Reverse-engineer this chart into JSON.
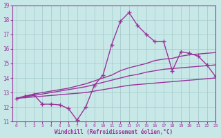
{
  "background_color": "#c8e8e8",
  "grid_color": "#a0c8c8",
  "line_color": "#993399",
  "title": "Windchill (Refroidissement éolien,°C)",
  "xlim": [
    -0.5,
    23
  ],
  "ylim": [
    11,
    19
  ],
  "yticks": [
    11,
    12,
    13,
    14,
    15,
    16,
    17,
    18,
    19
  ],
  "xticks": [
    0,
    1,
    2,
    3,
    4,
    5,
    6,
    7,
    8,
    9,
    10,
    11,
    12,
    13,
    14,
    15,
    16,
    17,
    18,
    19,
    20,
    21,
    22,
    23
  ],
  "series": [
    {
      "x": [
        0,
        1,
        2,
        3,
        4,
        5,
        6,
        7,
        8,
        9,
        10,
        11,
        12,
        13,
        14,
        15,
        16,
        17,
        18,
        19,
        20,
        21,
        22,
        23
      ],
      "y": [
        12.6,
        12.65,
        12.7,
        12.75,
        12.8,
        12.85,
        12.9,
        12.95,
        13.0,
        13.1,
        13.2,
        13.3,
        13.4,
        13.5,
        13.55,
        13.6,
        13.65,
        13.7,
        13.75,
        13.8,
        13.85,
        13.9,
        13.95,
        14.0
      ],
      "marker": "None",
      "linewidth": 1.0
    },
    {
      "x": [
        0,
        1,
        2,
        3,
        4,
        5,
        6,
        7,
        8,
        9,
        10,
        11,
        12,
        13,
        14,
        15,
        16,
        17,
        18,
        19,
        20,
        21,
        22,
        23
      ],
      "y": [
        12.6,
        12.7,
        12.8,
        12.9,
        13.0,
        13.1,
        13.2,
        13.3,
        13.4,
        13.55,
        13.7,
        13.85,
        14.0,
        14.15,
        14.25,
        14.4,
        14.5,
        14.6,
        14.65,
        14.7,
        14.75,
        14.8,
        14.85,
        14.9
      ],
      "marker": "None",
      "linewidth": 1.0
    },
    {
      "x": [
        0,
        1,
        2,
        3,
        4,
        5,
        6,
        7,
        8,
        9,
        10,
        11,
        12,
        13,
        14,
        15,
        16,
        17,
        18,
        19,
        20,
        21,
        22,
        23
      ],
      "y": [
        12.6,
        12.75,
        12.9,
        13.0,
        13.1,
        13.2,
        13.3,
        13.45,
        13.6,
        13.8,
        14.0,
        14.2,
        14.5,
        14.7,
        14.85,
        15.0,
        15.2,
        15.3,
        15.35,
        15.5,
        15.6,
        15.65,
        15.7,
        15.75
      ],
      "marker": "None",
      "linewidth": 1.0
    },
    {
      "x": [
        0,
        1,
        2,
        3,
        4,
        5,
        6,
        7,
        8,
        9,
        10,
        11,
        12,
        13,
        14,
        15,
        16,
        17,
        18,
        19,
        20,
        21,
        22,
        23
      ],
      "y": [
        12.6,
        12.75,
        12.85,
        12.2,
        12.2,
        12.15,
        11.9,
        11.1,
        12.0,
        13.5,
        14.2,
        16.3,
        17.9,
        18.5,
        17.6,
        17.0,
        16.5,
        16.5,
        14.5,
        15.8,
        15.7,
        15.5,
        14.9,
        14.1
      ],
      "marker": "+",
      "markersize": 5,
      "linewidth": 1.0
    }
  ]
}
